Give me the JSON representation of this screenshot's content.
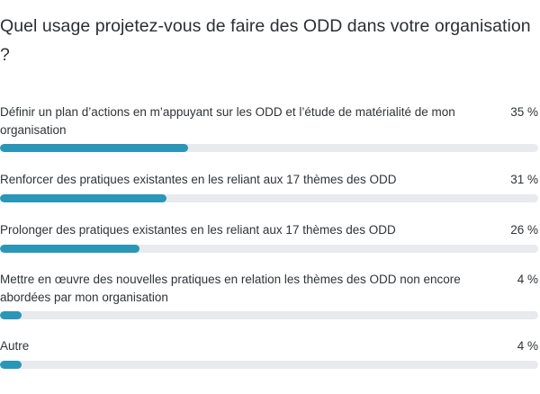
{
  "question": "Quel usage projetez-vous de faire des ODD dans votre organisation ?",
  "chart_data": {
    "type": "bar",
    "orientation": "horizontal",
    "categories": [
      "Définir un plan d’actions en m’appuyant sur les ODD et l’étude de matérialité de mon organisation",
      "Renforcer des pratiques existantes en les reliant aux 17 thèmes des ODD",
      "Prolonger des pratiques existantes en les reliant aux 17 thèmes des ODD",
      "Mettre en œuvre des nouvelles pratiques en relation les thèmes des ODD non encore abordées par mon organisation",
      "Autre"
    ],
    "values": [
      35,
      31,
      26,
      4,
      4
    ],
    "value_labels": [
      "35 %",
      "31 %",
      "26 %",
      "4 %",
      "4 %"
    ],
    "unit": "%",
    "xlim": [
      0,
      100
    ],
    "colors": {
      "bar": "#2a96b8",
      "track": "#e8eaed"
    }
  }
}
